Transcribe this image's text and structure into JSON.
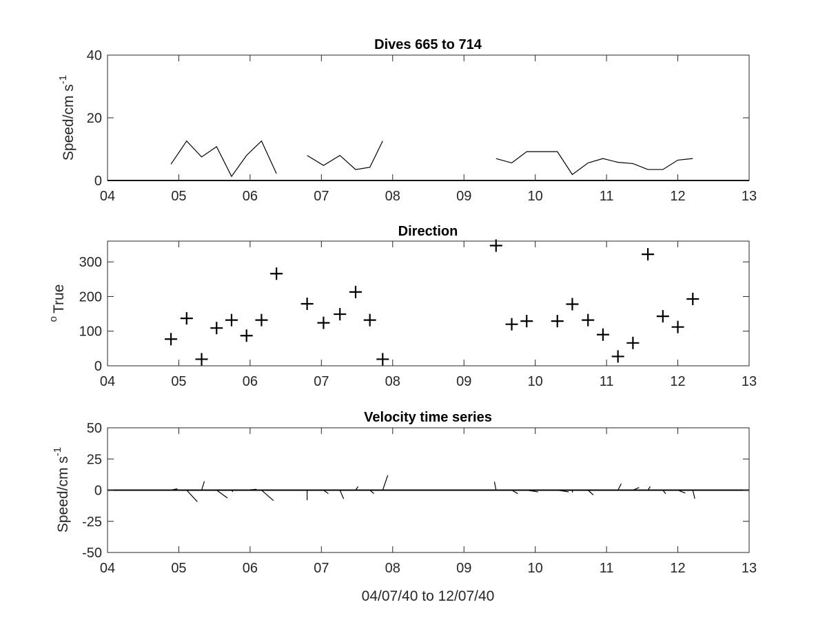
{
  "chart_data": [
    {
      "type": "line",
      "title": "Dives 665 to 714",
      "xlabel": "",
      "ylabel": "Speed/cm s",
      "ylabel_superscript": "-1",
      "xlim": [
        4,
        13
      ],
      "ylim": [
        0,
        40
      ],
      "xticks": [
        4,
        5,
        6,
        7,
        8,
        9,
        10,
        11,
        12,
        13
      ],
      "xtick_labels": [
        "04",
        "05",
        "06",
        "07",
        "08",
        "09",
        "10",
        "11",
        "12",
        "13"
      ],
      "yticks": [
        0,
        20,
        40
      ],
      "ytick_labels": [
        "0",
        "20",
        "40"
      ],
      "grid": false,
      "series": [
        {
          "segments": [
            {
              "x": [
                4.89,
                5.11,
                5.32,
                5.53,
                5.74,
                5.95,
                6.16,
                6.37
              ],
              "y": [
                5.2,
                12.6,
                7.5,
                10.8,
                1.3,
                8.0,
                12.6,
                2.2
              ]
            },
            {
              "x": [
                6.8,
                7.03,
                7.26,
                7.48,
                7.68,
                7.86
              ],
              "y": [
                8.0,
                4.8,
                8.0,
                3.5,
                4.2,
                12.6
              ]
            },
            {
              "x": [
                9.45,
                9.67,
                9.88,
                10.1,
                10.31,
                10.52,
                10.74,
                10.95,
                11.16,
                11.37,
                11.58,
                11.79,
                12.0,
                12.21
              ],
              "y": [
                7.0,
                5.6,
                9.2,
                9.2,
                9.2,
                1.9,
                5.6,
                7.0,
                5.8,
                5.4,
                3.5,
                3.5,
                6.5,
                7.0
              ]
            }
          ]
        }
      ]
    },
    {
      "type": "scatter",
      "title": "Direction",
      "xlabel": "",
      "ylabel": "True",
      "ylabel_superscript": "o",
      "xlim": [
        4,
        13
      ],
      "ylim": [
        0,
        360
      ],
      "xticks": [
        4,
        5,
        6,
        7,
        8,
        9,
        10,
        11,
        12,
        13
      ],
      "xtick_labels": [
        "04",
        "05",
        "06",
        "07",
        "08",
        "09",
        "10",
        "11",
        "12",
        "13"
      ],
      "yticks": [
        0,
        100,
        200,
        300
      ],
      "ytick_labels": [
        "0",
        "100",
        "200",
        "300"
      ],
      "grid": false,
      "marker": "+",
      "points": {
        "x": [
          4.89,
          5.11,
          5.32,
          5.53,
          5.74,
          5.95,
          6.16,
          6.37,
          6.8,
          7.03,
          7.26,
          7.48,
          7.68,
          7.86,
          9.45,
          9.67,
          9.88,
          10.31,
          10.52,
          10.74,
          10.95,
          11.16,
          11.37,
          11.58,
          11.79,
          12.0,
          12.21
        ],
        "y": [
          77,
          137,
          19,
          109,
          132,
          87,
          132,
          266,
          179,
          124,
          149,
          213,
          132,
          19,
          347,
          120,
          129,
          129,
          178,
          132,
          90,
          27,
          66,
          322,
          143,
          112,
          193
        ]
      }
    },
    {
      "type": "line",
      "subtype": "stick",
      "title": "Velocity time series",
      "xlabel": "04/07/40 to 12/07/40",
      "ylabel": "Speed/cm s",
      "ylabel_superscript": "-1",
      "xlim": [
        4,
        13
      ],
      "ylim": [
        -50,
        50
      ],
      "xticks": [
        4,
        5,
        6,
        7,
        8,
        9,
        10,
        11,
        12,
        13
      ],
      "xtick_labels": [
        "04",
        "05",
        "06",
        "07",
        "08",
        "09",
        "10",
        "11",
        "12",
        "13"
      ],
      "yticks": [
        -50,
        -25,
        0,
        25,
        50
      ],
      "ytick_labels": [
        "-50",
        "-25",
        "0",
        "25",
        "50"
      ],
      "grid": false,
      "sticks": {
        "x": [
          4.89,
          5.11,
          5.32,
          5.53,
          5.74,
          5.95,
          6.16,
          6.37,
          6.8,
          7.03,
          7.26,
          7.48,
          7.68,
          7.86,
          9.45,
          9.67,
          9.88,
          10.31,
          10.52,
          10.74,
          10.95,
          11.16,
          11.37,
          11.58,
          11.79,
          12.0,
          12.21
        ],
        "u": [
          5.1,
          8.6,
          2.2,
          8.7,
          1.0,
          8.0,
          9.6,
          -2.2,
          0.0,
          3.9,
          3.0,
          2.0,
          3.3,
          4.1,
          -1.3,
          4.9,
          9.1,
          9.1,
          0.1,
          4.2,
          7.0,
          2.6,
          5.0,
          1.9,
          2.3,
          6.0,
          1.6
        ],
        "v": [
          1.1,
          -9.3,
          7.1,
          -6.3,
          -1.3,
          0.7,
          -8.4,
          0.2,
          -8.0,
          -2.8,
          -7.0,
          2.9,
          -2.8,
          11.9,
          6.8,
          -2.8,
          -1.4,
          -1.4,
          -1.9,
          -3.8,
          0.0,
          5.1,
          2.1,
          2.9,
          -2.9,
          -2.4,
          -6.8
        ]
      }
    }
  ]
}
